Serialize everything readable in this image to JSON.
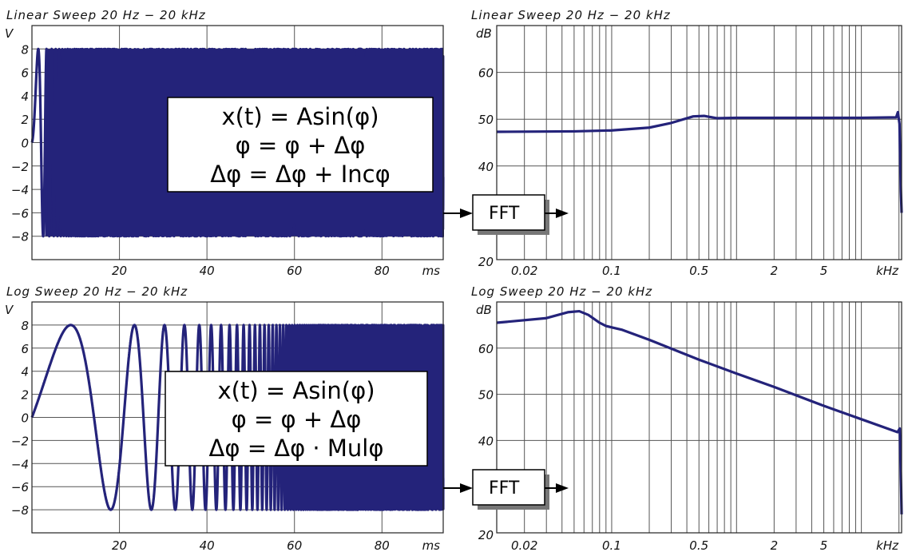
{
  "colors": {
    "trace": "#24237a",
    "grid": "#555555",
    "frame": "#222222"
  },
  "chart_data": [
    {
      "id": "lin_time",
      "type": "line",
      "title": "Linear Sweep 20 Hz − 20 kHz",
      "ylabel": "V",
      "xunit": "ms",
      "xlim": [
        0,
        94
      ],
      "ylim": [
        -10,
        10
      ],
      "xticks": [
        {
          "v": 20,
          "label": "20"
        },
        {
          "v": 40,
          "label": "40"
        },
        {
          "v": 60,
          "label": "60"
        },
        {
          "v": 80,
          "label": "80"
        }
      ],
      "yticks": [
        {
          "v": 8,
          "label": "8"
        },
        {
          "v": 6,
          "label": "6"
        },
        {
          "v": 4,
          "label": "4"
        },
        {
          "v": 2,
          "label": "2"
        },
        {
          "v": 0,
          "label": "0"
        },
        {
          "v": -2,
          "label": "−2"
        },
        {
          "v": -4,
          "label": "−4"
        },
        {
          "v": -6,
          "label": "−6"
        },
        {
          "v": -8,
          "label": "−8"
        }
      ],
      "amplitude": 8,
      "series": [
        {
          "sweep": "linear",
          "f_start_hz": 20,
          "f_end_hz": 20000,
          "duration_ms": 94
        }
      ],
      "equation": [
        "x(t) = Asin(φ)",
        "φ = φ + Δφ",
        "Δφ = Δφ + Incφ"
      ]
    },
    {
      "id": "lin_fft",
      "type": "line",
      "title": "Linear Sweep 20 Hz − 20 kHz",
      "ylabel": "dB",
      "xunit": "kHz",
      "xscale": "log",
      "xlim": [
        0.012,
        21
      ],
      "ylim": [
        20,
        70
      ],
      "xticks": [
        {
          "v": 0.02,
          "label": "0.02"
        },
        {
          "v": 0.1,
          "label": "0.1"
        },
        {
          "v": 0.5,
          "label": "0.5"
        },
        {
          "v": 2,
          "label": "2"
        },
        {
          "v": 5,
          "label": "5"
        }
      ],
      "yticks": [
        {
          "v": 60,
          "label": "60"
        },
        {
          "v": 50,
          "label": "50"
        },
        {
          "v": 40,
          "label": "40"
        },
        {
          "v": 20,
          "label": "20"
        }
      ],
      "series": [
        {
          "x": [
            0.012,
            0.05,
            0.1,
            0.2,
            0.3,
            0.45,
            0.55,
            0.7,
            1,
            2,
            5,
            10,
            19,
            19.6,
            20.2,
            20.7,
            21
          ],
          "y": [
            47.3,
            47.4,
            47.6,
            48.2,
            49.2,
            50.6,
            50.7,
            50.2,
            50.3,
            50.3,
            50.3,
            50.3,
            50.4,
            51.5,
            49,
            35,
            30
          ]
        }
      ],
      "label": "FFT"
    },
    {
      "id": "log_time",
      "type": "line",
      "title": "Log Sweep 20 Hz − 20 kHz",
      "ylabel": "V",
      "xunit": "ms",
      "xlim": [
        0,
        94
      ],
      "ylim": [
        -10,
        10
      ],
      "xticks": [
        {
          "v": 20,
          "label": "20"
        },
        {
          "v": 40,
          "label": "40"
        },
        {
          "v": 60,
          "label": "60"
        },
        {
          "v": 80,
          "label": "80"
        }
      ],
      "yticks": [
        {
          "v": 8,
          "label": "8"
        },
        {
          "v": 6,
          "label": "6"
        },
        {
          "v": 4,
          "label": "4"
        },
        {
          "v": 2,
          "label": "2"
        },
        {
          "v": 0,
          "label": "0"
        },
        {
          "v": -2,
          "label": "−2"
        },
        {
          "v": -4,
          "label": "−4"
        },
        {
          "v": -6,
          "label": "−6"
        },
        {
          "v": -8,
          "label": "−8"
        }
      ],
      "amplitude": 8,
      "series": [
        {
          "sweep": "log",
          "f_start_hz": 20,
          "f_end_hz": 20000,
          "duration_ms": 94
        }
      ],
      "equation": [
        "x(t) = Asin(φ)",
        "φ = φ + Δφ",
        "Δφ = Δφ · Mulφ"
      ]
    },
    {
      "id": "log_fft",
      "type": "line",
      "title": "Log Sweep 20 Hz − 20 kHz",
      "ylabel": "dB",
      "xunit": "kHz",
      "xscale": "log",
      "xlim": [
        0.012,
        21
      ],
      "ylim": [
        20,
        70
      ],
      "xticks": [
        {
          "v": 0.02,
          "label": "0.02"
        },
        {
          "v": 0.1,
          "label": "0.1"
        },
        {
          "v": 0.5,
          "label": "0.5"
        },
        {
          "v": 2,
          "label": "2"
        },
        {
          "v": 5,
          "label": "5"
        }
      ],
      "yticks": [
        {
          "v": 60,
          "label": "60"
        },
        {
          "v": 50,
          "label": "50"
        },
        {
          "v": 40,
          "label": "40"
        },
        {
          "v": 20,
          "label": "20"
        }
      ],
      "series": [
        {
          "x": [
            0.012,
            0.03,
            0.045,
            0.055,
            0.065,
            0.08,
            0.09,
            0.1,
            0.12,
            0.2,
            0.5,
            1,
            2,
            5,
            10,
            19.5,
            20.3,
            20.8,
            21
          ],
          "y": [
            65.5,
            66.5,
            67.8,
            68,
            67.2,
            65.5,
            64.8,
            64.5,
            64,
            61.8,
            57.5,
            54.5,
            51.6,
            47.5,
            44.6,
            41.8,
            42.6,
            30,
            24
          ]
        }
      ],
      "label": "FFT"
    }
  ]
}
